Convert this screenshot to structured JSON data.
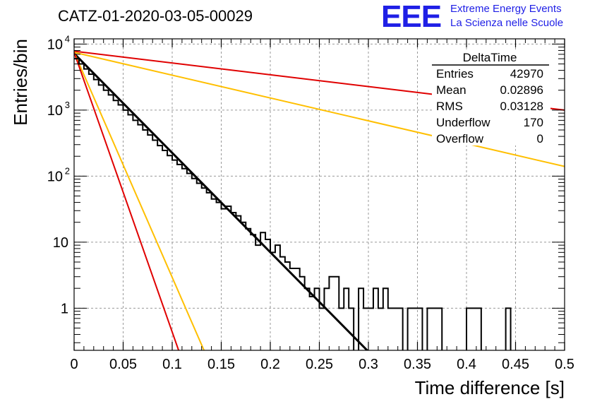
{
  "header": {
    "title": "CATZ-01-2020-03-05-00029",
    "logo_mark": "EEE",
    "logo_line1": "Extreme Energy Events",
    "logo_line2": "La Scienza nelle Scuole"
  },
  "stats_box": {
    "title": "DeltaTime",
    "rows": [
      {
        "label": "Entries",
        "value": "42970"
      },
      {
        "label": "Mean",
        "value": "0.02896"
      },
      {
        "label": "RMS",
        "value": "0.03128"
      },
      {
        "label": "Underflow",
        "value": "170"
      },
      {
        "label": "Overflow",
        "value": "0"
      }
    ]
  },
  "chart_data": {
    "type": "histogram",
    "xlabel": "Time difference [s]",
    "ylabel": "Entries/bin",
    "xlim": [
      0,
      0.5
    ],
    "ylim": [
      0.23,
      12000
    ],
    "y_scale": "log",
    "grid": true,
    "x_ticks": [
      "0",
      "0.05",
      "0.1",
      "0.15",
      "0.2",
      "0.25",
      "0.3",
      "0.35",
      "0.4",
      "0.45",
      "0.5"
    ],
    "y_ticks": [
      {
        "value": 1,
        "label": "1"
      },
      {
        "value": 10,
        "label": "10"
      },
      {
        "value": 100,
        "label": "10",
        "exp": "2"
      },
      {
        "value": 1000,
        "label": "10",
        "exp": "3"
      },
      {
        "value": 10000,
        "label": "10",
        "exp": "4"
      }
    ],
    "histogram": {
      "bin_width": 0.005,
      "counts": [
        6000,
        5000,
        4200,
        3500,
        2900,
        2400,
        2000,
        1700,
        1400,
        1200,
        1000,
        850,
        700,
        600,
        500,
        420,
        350,
        290,
        245,
        205,
        175,
        150,
        130,
        110,
        92,
        78,
        66,
        56,
        45,
        40,
        32,
        35,
        28,
        25,
        20,
        16,
        13,
        9,
        14,
        11,
        7,
        9,
        6,
        5,
        4,
        4,
        3,
        2,
        1.5,
        2,
        1,
        2,
        3,
        3,
        1,
        2,
        1,
        0,
        2,
        1,
        1,
        2,
        1,
        2,
        1,
        1,
        1,
        0,
        1,
        1,
        1,
        0,
        1,
        1,
        1,
        0,
        0,
        0,
        0,
        0,
        1,
        1,
        1,
        0,
        0,
        0,
        0,
        0,
        1,
        0,
        0,
        0,
        0,
        0,
        0,
        0,
        0,
        0,
        0,
        0
      ]
    },
    "series": [
      {
        "color": "#000000",
        "style": "fit-line",
        "points": [
          [
            0,
            7200
          ],
          [
            0.3,
            0.22
          ]
        ]
      },
      {
        "color": "#e00000",
        "style": "line",
        "points": [
          [
            0,
            7800
          ],
          [
            0.5,
            1000
          ]
        ]
      },
      {
        "color": "#ffbf00",
        "style": "line",
        "points": [
          [
            0,
            7500
          ],
          [
            0.5,
            140
          ]
        ]
      },
      {
        "color": "#ffbf00",
        "style": "line",
        "points": [
          [
            0,
            7500
          ],
          [
            0.133,
            0.22
          ]
        ]
      },
      {
        "color": "#e00000",
        "style": "line",
        "points": [
          [
            0,
            7500
          ],
          [
            0.107,
            0.22
          ]
        ]
      }
    ]
  }
}
